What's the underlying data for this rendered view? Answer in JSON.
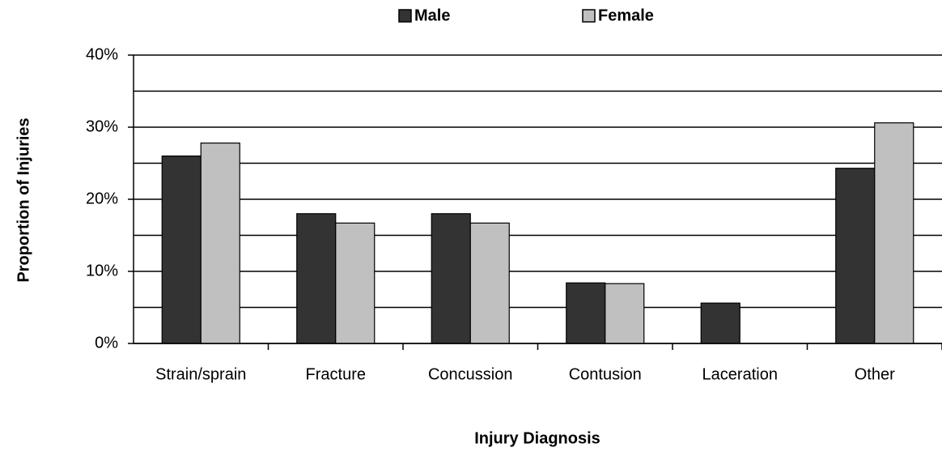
{
  "chart_data": {
    "type": "bar",
    "x_label": "Injury Diagnosis",
    "y_label": "Proportion of Injuries",
    "categories": [
      "Strain/sprain",
      "Fracture",
      "Concussion",
      "Contusion",
      "Laceration",
      "Other"
    ],
    "series": [
      {
        "name": "Male",
        "color": "#333333",
        "values": [
          26,
          18,
          18,
          8.4,
          5.6,
          24.3
        ]
      },
      {
        "name": "Female",
        "color": "#c0c0c0",
        "values": [
          27.8,
          16.7,
          16.7,
          8.3,
          0,
          30.6
        ]
      }
    ],
    "ylim": [
      0,
      40
    ],
    "yticks": [
      {
        "value": 0,
        "label": "0%"
      },
      {
        "value": 10,
        "label": "10%"
      },
      {
        "value": 20,
        "label": "20%"
      },
      {
        "value": 30,
        "label": "30%"
      },
      {
        "value": 40,
        "label": "40%"
      }
    ],
    "minor_yticks": [
      5,
      15,
      25,
      35
    ],
    "grid": true,
    "legend": "top"
  }
}
